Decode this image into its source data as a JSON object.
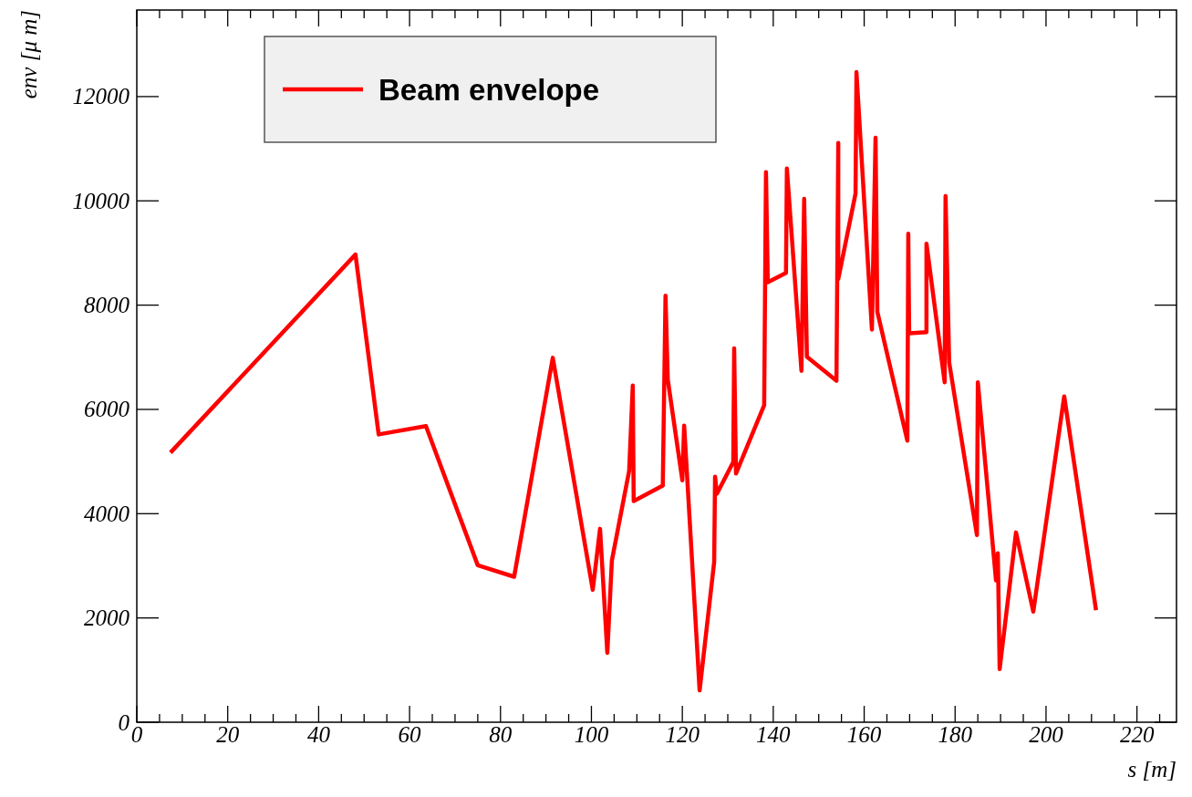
{
  "chart_data": {
    "type": "line",
    "xlabel": "s [m]",
    "ylabel": "env [μ m]",
    "xlim": [
      0,
      228.7
    ],
    "ylim": [
      0,
      13660
    ],
    "xticks": [
      0,
      20,
      40,
      60,
      80,
      100,
      120,
      140,
      160,
      180,
      200,
      220
    ],
    "yticks": [
      0,
      2000,
      4000,
      6000,
      8000,
      10000,
      12000
    ],
    "legend": "top left",
    "line_style": "solid",
    "series": [
      {
        "name": "Beam envelope",
        "color": "#ff0000",
        "x": [
          7.4,
          48.1,
          53.2,
          63.6,
          75.0,
          83.0,
          91.5,
          100.3,
          101.9,
          103.5,
          104.5,
          108.3,
          109.1,
          109.3,
          115.7,
          116.3,
          116.8,
          120.0,
          120.4,
          123.8,
          127.0,
          127.2,
          127.6,
          131.2,
          131.4,
          131.8,
          138.0,
          138.4,
          138.8,
          142.8,
          143.0,
          146.2,
          146.8,
          147.4,
          153.9,
          154.3,
          154.3,
          158.1,
          158.3,
          161.7,
          162.5,
          162.9,
          169.5,
          169.7,
          169.9,
          173.7,
          173.7,
          177.7,
          177.9,
          178.7,
          184.8,
          185.0,
          189.0,
          189.4,
          189.8,
          193.4,
          197.2,
          204.0,
          211.0
        ],
        "values": [
          5170,
          8970,
          5520,
          5680,
          3010,
          2790,
          6990,
          2540,
          3710,
          1330,
          3100,
          4820,
          6460,
          4240,
          4540,
          8180,
          6570,
          4640,
          5690,
          610,
          3070,
          4710,
          4380,
          4990,
          7170,
          4770,
          6080,
          10550,
          8440,
          8620,
          10620,
          6740,
          10040,
          7010,
          6550,
          11110,
          8500,
          10140,
          12470,
          7530,
          11210,
          7870,
          5400,
          9370,
          7460,
          7480,
          9180,
          6520,
          10090,
          6900,
          3590,
          6520,
          2720,
          3240,
          1020,
          3640,
          2120,
          6250,
          2150
        ]
      }
    ]
  }
}
